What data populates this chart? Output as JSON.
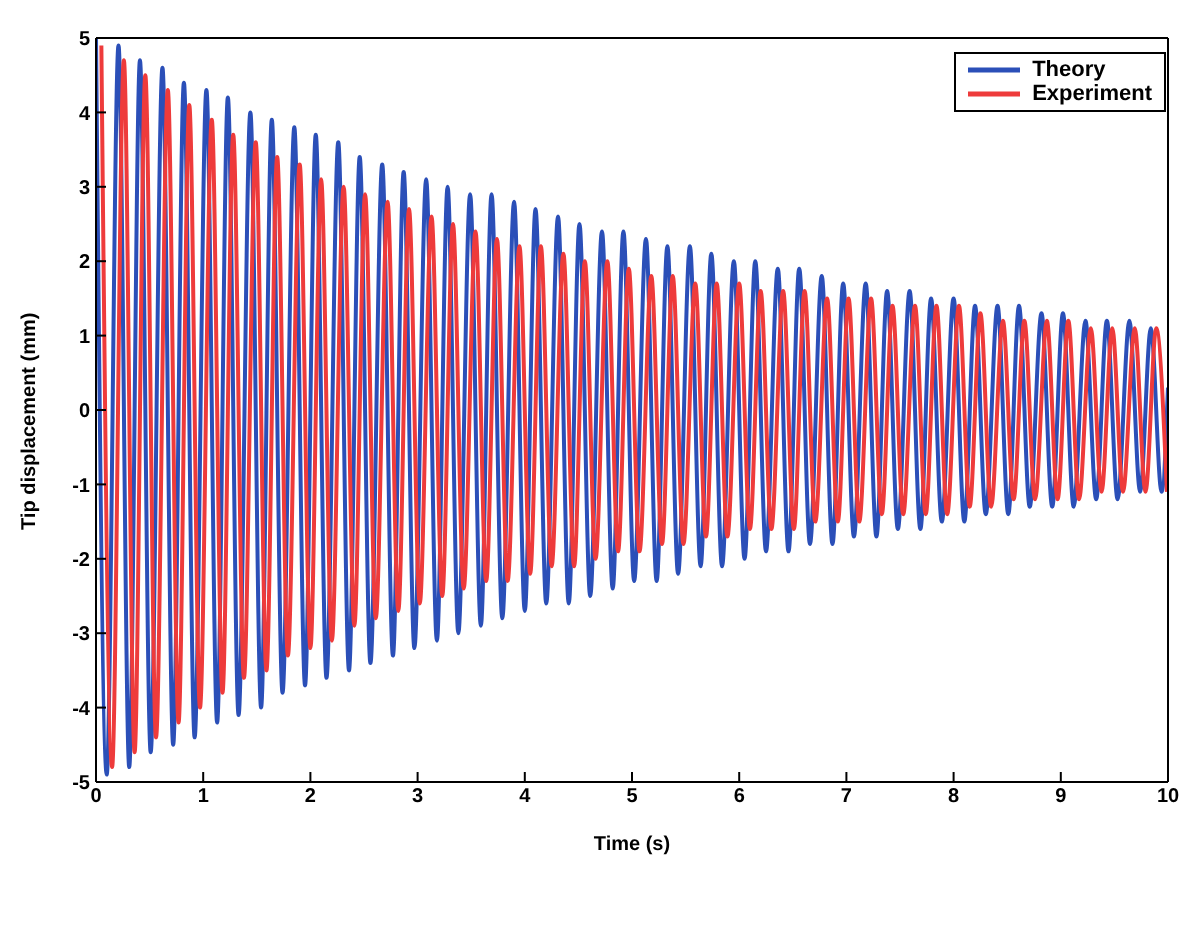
{
  "chart_data": {
    "type": "line",
    "xlabel": "Time (s)",
    "ylabel": "Tip displacement (mm)",
    "xlim": [
      0,
      10
    ],
    "xticks": [
      0,
      1,
      2,
      3,
      4,
      5,
      6,
      7,
      8,
      9,
      10
    ],
    "ylim": [
      -5,
      5
    ],
    "yticks": [
      -5,
      -4,
      -3,
      -2,
      -1,
      0,
      1,
      2,
      3,
      4,
      5
    ],
    "legend": "top right",
    "marker": "none",
    "line_style": "solid",
    "series": [
      {
        "name": "Theory",
        "color": "#2b4fb8",
        "x": [
          0,
          0.1,
          0.21,
          0.31,
          0.41,
          0.51,
          0.62,
          0.72,
          0.82,
          0.92,
          1.03,
          1.13,
          1.23,
          1.33,
          1.44,
          1.54,
          1.64,
          1.74,
          1.85,
          1.95,
          2.05,
          2.15,
          2.26,
          2.36,
          2.46,
          2.56,
          2.67,
          2.77,
          2.87,
          2.97,
          3.08,
          3.18,
          3.28,
          3.38,
          3.49,
          3.59,
          3.69,
          3.79,
          3.9,
          4,
          4.1,
          4.2,
          4.31,
          4.41,
          4.51,
          4.61,
          4.72,
          4.82,
          4.92,
          5.02,
          5.13,
          5.23,
          5.33,
          5.43,
          5.54,
          5.64,
          5.74,
          5.84,
          5.95,
          6.05,
          6.15,
          6.25,
          6.36,
          6.46,
          6.56,
          6.66,
          6.77,
          6.87,
          6.97,
          7.07,
          7.18,
          7.28,
          7.38,
          7.48,
          7.59,
          7.69,
          7.79,
          7.89,
          8,
          8.1,
          8.2,
          8.3,
          8.41,
          8.51,
          8.61,
          8.71,
          8.82,
          8.92,
          9.02,
          9.12,
          9.23,
          9.33,
          9.43,
          9.53,
          9.64,
          9.74,
          9.84,
          9.94,
          10
        ],
        "values": [
          5,
          -4.9,
          4.9,
          -4.8,
          4.7,
          -4.6,
          4.6,
          -4.5,
          4.4,
          -4.4,
          4.3,
          -4.2,
          4.2,
          -4.1,
          4,
          -4,
          3.9,
          -3.8,
          3.8,
          -3.7,
          3.7,
          -3.6,
          3.6,
          -3.5,
          3.4,
          -3.4,
          3.3,
          -3.3,
          3.2,
          -3.2,
          3.1,
          -3.1,
          3,
          -3,
          2.9,
          -2.9,
          2.9,
          -2.8,
          2.8,
          -2.7,
          2.7,
          -2.6,
          2.6,
          -2.6,
          2.5,
          -2.5,
          2.4,
          -2.4,
          2.4,
          -2.3,
          2.3,
          -2.3,
          2.2,
          -2.2,
          2.2,
          -2.1,
          2.1,
          -2.1,
          2,
          -2,
          2,
          -1.9,
          1.9,
          -1.9,
          1.9,
          -1.8,
          1.8,
          -1.8,
          1.7,
          -1.7,
          1.7,
          -1.7,
          1.6,
          -1.6,
          1.6,
          -1.6,
          1.5,
          -1.5,
          1.5,
          -1.5,
          1.4,
          -1.4,
          1.4,
          -1.4,
          1.4,
          -1.3,
          1.3,
          -1.3,
          1.3,
          -1.3,
          1.2,
          -1.2,
          1.2,
          -1.2,
          1.2,
          -1.1,
          1.1,
          -1.1,
          0.3
        ]
      },
      {
        "name": "Experiment",
        "color": "#ee3b3b",
        "x": [
          0.05,
          0.15,
          0.26,
          0.36,
          0.46,
          0.56,
          0.67,
          0.77,
          0.87,
          0.97,
          1.08,
          1.18,
          1.28,
          1.38,
          1.49,
          1.59,
          1.69,
          1.79,
          1.9,
          2,
          2.1,
          2.2,
          2.31,
          2.41,
          2.51,
          2.61,
          2.72,
          2.82,
          2.92,
          3.02,
          3.13,
          3.23,
          3.33,
          3.43,
          3.54,
          3.64,
          3.74,
          3.84,
          3.95,
          4.05,
          4.15,
          4.25,
          4.36,
          4.46,
          4.56,
          4.66,
          4.77,
          4.87,
          4.97,
          5.07,
          5.18,
          5.28,
          5.38,
          5.48,
          5.59,
          5.69,
          5.79,
          5.89,
          6,
          6.1,
          6.2,
          6.3,
          6.41,
          6.51,
          6.61,
          6.71,
          6.82,
          6.92,
          7.02,
          7.12,
          7.23,
          7.33,
          7.43,
          7.53,
          7.64,
          7.74,
          7.84,
          7.94,
          8.05,
          8.15,
          8.25,
          8.35,
          8.46,
          8.56,
          8.66,
          8.76,
          8.87,
          8.97,
          9.07,
          9.17,
          9.28,
          9.38,
          9.48,
          9.58,
          9.69,
          9.79,
          9.89,
          9.99
        ],
        "values": [
          4.9,
          -4.8,
          4.7,
          -4.6,
          4.5,
          -4.4,
          4.3,
          -4.2,
          4.1,
          -4,
          3.9,
          -3.8,
          3.7,
          -3.6,
          3.6,
          -3.5,
          3.4,
          -3.3,
          3.3,
          -3.2,
          3.1,
          -3.1,
          3,
          -2.9,
          2.9,
          -2.8,
          2.8,
          -2.7,
          2.7,
          -2.6,
          2.6,
          -2.5,
          2.5,
          -2.4,
          2.4,
          -2.3,
          2.3,
          -2.3,
          2.2,
          -2.2,
          2.2,
          -2.1,
          2.1,
          -2.1,
          2,
          -2,
          2,
          -1.9,
          1.9,
          -1.9,
          1.8,
          -1.8,
          1.8,
          -1.8,
          1.7,
          -1.7,
          1.7,
          -1.7,
          1.7,
          -1.6,
          1.6,
          -1.6,
          1.6,
          -1.6,
          1.6,
          -1.5,
          1.5,
          -1.5,
          1.5,
          -1.5,
          1.5,
          -1.4,
          1.4,
          -1.4,
          1.4,
          -1.4,
          1.4,
          -1.4,
          1.4,
          -1.3,
          1.3,
          -1.3,
          1.2,
          -1.2,
          1.2,
          -1.2,
          1.2,
          -1.2,
          1.2,
          -1.2,
          1.1,
          -1.1,
          1.1,
          -1.1,
          1.1,
          -1.1,
          1.1,
          -1.1
        ]
      }
    ]
  }
}
